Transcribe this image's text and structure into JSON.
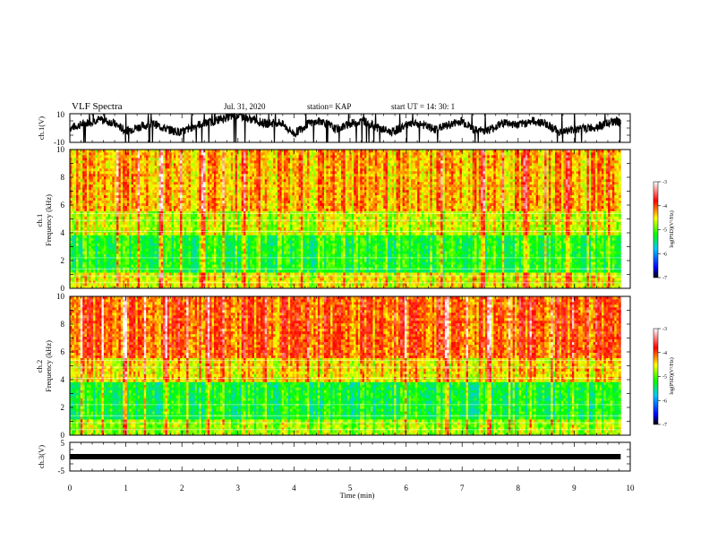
{
  "header": {
    "title": "VLF Spectra",
    "date": "Jul. 31, 2020",
    "station": "station= KAP",
    "start_ut": "start  UT =   14: 30: 1"
  },
  "chart_data": [
    {
      "type": "line",
      "panel": "ch1-waveform",
      "ylabel": "ch.1(V)",
      "ylim": [
        -10,
        10
      ],
      "ytick_labels": [
        "10",
        "-10"
      ],
      "xlim": [
        0,
        10
      ],
      "series": [
        {
          "color": "#000000",
          "x": [
            0,
            0.25,
            0.5,
            0.75,
            1.0,
            1.25,
            1.5,
            1.75,
            2.0,
            2.25,
            2.5,
            2.75,
            3.0,
            3.25,
            3.5,
            3.75,
            4.0,
            4.25,
            4.5,
            4.75,
            5.0,
            5.25,
            5.5,
            5.75,
            6.0,
            6.25,
            6.5,
            6.75,
            7.0,
            7.25,
            7.5,
            7.75,
            8.0,
            8.25,
            8.5,
            8.75,
            9.0,
            9.25,
            9.5,
            9.75,
            9.83
          ],
          "y": [
            0,
            3,
            6,
            4,
            -2,
            1,
            3,
            -1,
            -3,
            2,
            4,
            7,
            9,
            6,
            3,
            4,
            -4,
            3,
            5,
            -1,
            3,
            5,
            0,
            -3,
            2,
            3,
            -1,
            2,
            5,
            -2,
            -1,
            4,
            2,
            5,
            3,
            -3,
            -1,
            0,
            2,
            5,
            3
          ]
        }
      ]
    },
    {
      "type": "heatmap",
      "panel": "ch1-spectrogram",
      "ylabel": "ch.1\nFrequency (kHz)",
      "ylim": [
        0,
        10
      ],
      "ytick_labels": [
        "0",
        "2",
        "4",
        "6",
        "8",
        "10"
      ],
      "xlim": [
        0,
        10
      ],
      "data_end_min": 9.83,
      "colorbar": {
        "label": "log(PSD)(V²/Hz)",
        "range": [
          -7,
          -3
        ],
        "ticks": [
          "-3",
          "-4",
          "-5",
          "-6",
          "-7"
        ]
      }
    },
    {
      "type": "heatmap",
      "panel": "ch2-spectrogram",
      "ylabel": "ch.2\nFrequency (kHz)",
      "ylim": [
        0,
        10
      ],
      "ytick_labels": [
        "0",
        "2",
        "4",
        "6",
        "8",
        "10"
      ],
      "xlim": [
        0,
        10
      ],
      "data_end_min": 9.83,
      "colorbar": {
        "label": "log(PSD)(V²/Hz)",
        "range": [
          -7,
          -3
        ],
        "ticks": [
          "-3",
          "-4",
          "-5",
          "-6",
          "-7"
        ]
      }
    },
    {
      "type": "line",
      "panel": "ch3-waveform",
      "ylabel": "ch.3(V)",
      "ylim": [
        -5,
        5
      ],
      "ytick_labels": [
        "5",
        "0",
        "-5"
      ],
      "xlim": [
        0,
        10
      ],
      "xlabel": "Time (min)",
      "xtick_labels": [
        "0",
        "1",
        "2",
        "3",
        "4",
        "5",
        "6",
        "7",
        "8",
        "9",
        "10"
      ],
      "series": [
        {
          "color": "#000000",
          "x": [
            0,
            9.83
          ],
          "y": [
            0,
            0
          ]
        }
      ]
    }
  ]
}
